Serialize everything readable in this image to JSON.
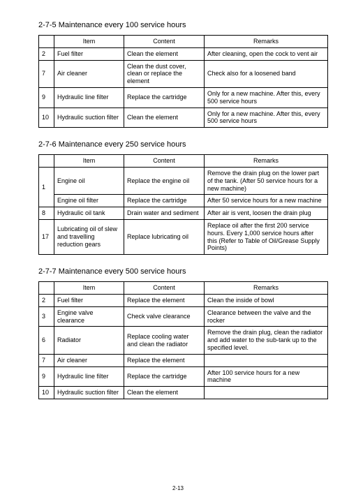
{
  "footer": "2-13",
  "sections": [
    {
      "title": "2-7-5  Maintenance every 100 service hours",
      "headers": [
        "",
        "Item",
        "Content",
        "Remarks"
      ],
      "groups": [
        {
          "num": "2",
          "rows": [
            {
              "item": "Fuel filter",
              "content": "Clean the element",
              "remarks": "After cleaning, open the cock to vent air"
            }
          ]
        },
        {
          "num": "7",
          "rows": [
            {
              "item": "Air cleaner",
              "content": "Clean the dust cover, clean or replace the element",
              "remarks": "Check also for a loosened band"
            }
          ]
        },
        {
          "num": "9",
          "rows": [
            {
              "item": "Hydraulic line filter",
              "content": "Replace the cartridge",
              "remarks": "Only for a new machine.  After this, every 500 service hours"
            }
          ]
        },
        {
          "num": "10",
          "rows": [
            {
              "item": "Hydraulic suction filter",
              "content": "Clean the element",
              "remarks": "Only for a new machine.  After this, every 500 service hours"
            }
          ]
        }
      ]
    },
    {
      "title": "2-7-6  Maintenance every 250 service hours",
      "headers": [
        "",
        "Item",
        "Content",
        "Remarks"
      ],
      "groups": [
        {
          "num": "1",
          "rows": [
            {
              "item": "Engine oil",
              "content": "Replace the engine oil",
              "remarks": "Remove the drain plug on the lower part of the tank.  (After 50 service hours for a new machine)"
            },
            {
              "item": "Engine oil filter",
              "content": "Replace the cartridge",
              "remarks": "After 50 service hours for a new machine"
            }
          ]
        },
        {
          "num": "8",
          "rows": [
            {
              "item": "Hydraulic oil tank",
              "content": "Drain water and sediment",
              "remarks": "After air is vent, loosen the drain plug"
            }
          ]
        },
        {
          "num": "17",
          "rows": [
            {
              "item": "Lubricating oil of slew and travelling reduction gears",
              "content": "Replace lubricating oil",
              "remarks": "Replace oil after the first 200 service hours.  Every 1,000 service hours after this (Refer to Table of Oil/Grease Supply Points)"
            }
          ]
        }
      ]
    },
    {
      "title": "2-7-7  Maintenance every 500 service hours",
      "headers": [
        "",
        "Item",
        "Content",
        "Remarks"
      ],
      "groups": [
        {
          "num": "2",
          "rows": [
            {
              "item": "Fuel filter",
              "content": "Replace the element",
              "remarks": "Clean the inside of bowl"
            }
          ]
        },
        {
          "num": "3",
          "rows": [
            {
              "item": "Engine valve clearance",
              "content": "Check valve clearance",
              "remarks": "Clearance between the valve and the rocker"
            }
          ]
        },
        {
          "num": "6",
          "rows": [
            {
              "item": "Radiator",
              "content": "Replace cooling water and clean the radiator",
              "remarks": "Remove the drain plug, clean the radiator and add water to the sub-tank up to the specified level."
            }
          ]
        },
        {
          "num": "7",
          "rows": [
            {
              "item": "Air cleaner",
              "content": "Replace the element",
              "remarks": ""
            }
          ]
        },
        {
          "num": "9",
          "rows": [
            {
              "item": "Hydraulic line filter",
              "content": "Replace the cartridge",
              "remarks": "After 100 service hours for a new machine"
            }
          ]
        },
        {
          "num": "10",
          "rows": [
            {
              "item": "Hydraulic suction filter",
              "content": "Clean the element",
              "remarks": ""
            }
          ]
        }
      ]
    }
  ]
}
